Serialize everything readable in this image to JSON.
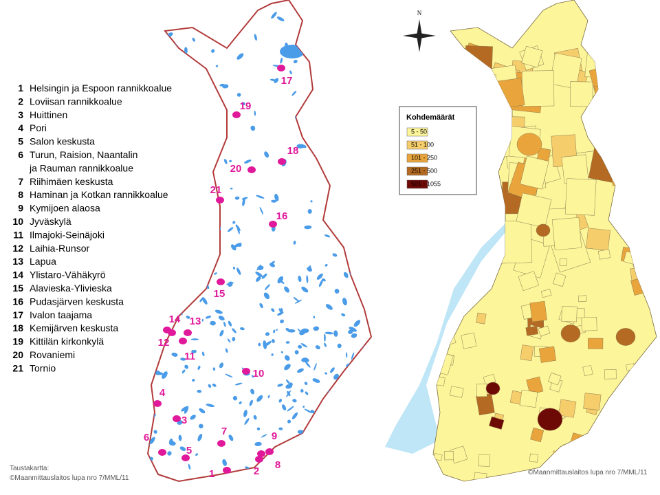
{
  "areas": [
    {
      "number": "1",
      "name": "Helsingin ja Espoon rannikkoalue"
    },
    {
      "number": "2",
      "name": "Loviisan rannikkoalue"
    },
    {
      "number": "3",
      "name": "Huittinen"
    },
    {
      "number": "4",
      "name": "Pori"
    },
    {
      "number": "5",
      "name": "Salon keskusta"
    },
    {
      "number": "6",
      "name": "Turun, Raision, Naantalin",
      "name_continued": "ja Rauman rannikkoalue"
    },
    {
      "number": "7",
      "name": "Riihimäen keskusta"
    },
    {
      "number": "8",
      "name": "Haminan ja Kotkan rannikkoalue"
    },
    {
      "number": "9",
      "name": "Kymijoen alaosa"
    },
    {
      "number": "10",
      "name": "Jyväskylä"
    },
    {
      "number": "11",
      "name": "Ilmajoki-Seinäjoki"
    },
    {
      "number": "12",
      "name": "Laihia-Runsor"
    },
    {
      "number": "13",
      "name": "Lapua"
    },
    {
      "number": "14",
      "name": "Ylistaro-Vähäkyrö"
    },
    {
      "number": "15",
      "name": "Alavieska-Ylivieska"
    },
    {
      "number": "16",
      "name": "Pudasjärven keskusta"
    },
    {
      "number": "17",
      "name": "Ivalon taajama"
    },
    {
      "number": "18",
      "name": "Kemijärven keskusta"
    },
    {
      "number": "19",
      "name": "Kittilän kirkonkylä"
    },
    {
      "number": "20",
      "name": "Rovaniemi"
    },
    {
      "number": "21",
      "name": "Tornio"
    }
  ],
  "left_credit": {
    "line1": "Taustakartta:",
    "line2": "©Maanmittauslaitos lupa nro 7/MML/11"
  },
  "compass": {
    "north": "N"
  },
  "legend": {
    "title": "Kohdemäärät",
    "entries": [
      {
        "label": "5 - 50",
        "color": "#fdf59a"
      },
      {
        "label": "51 - 100",
        "color": "#f6cd6b"
      },
      {
        "label": "101 - 250",
        "color": "#e9a53c"
      },
      {
        "label": "251 - 500",
        "color": "#b46a22"
      },
      {
        "label": "501 - 1055",
        "color": "#6e0a06"
      }
    ]
  },
  "right_credit": "©Maanmittauslaitos lupa nro 7/MML/11"
}
